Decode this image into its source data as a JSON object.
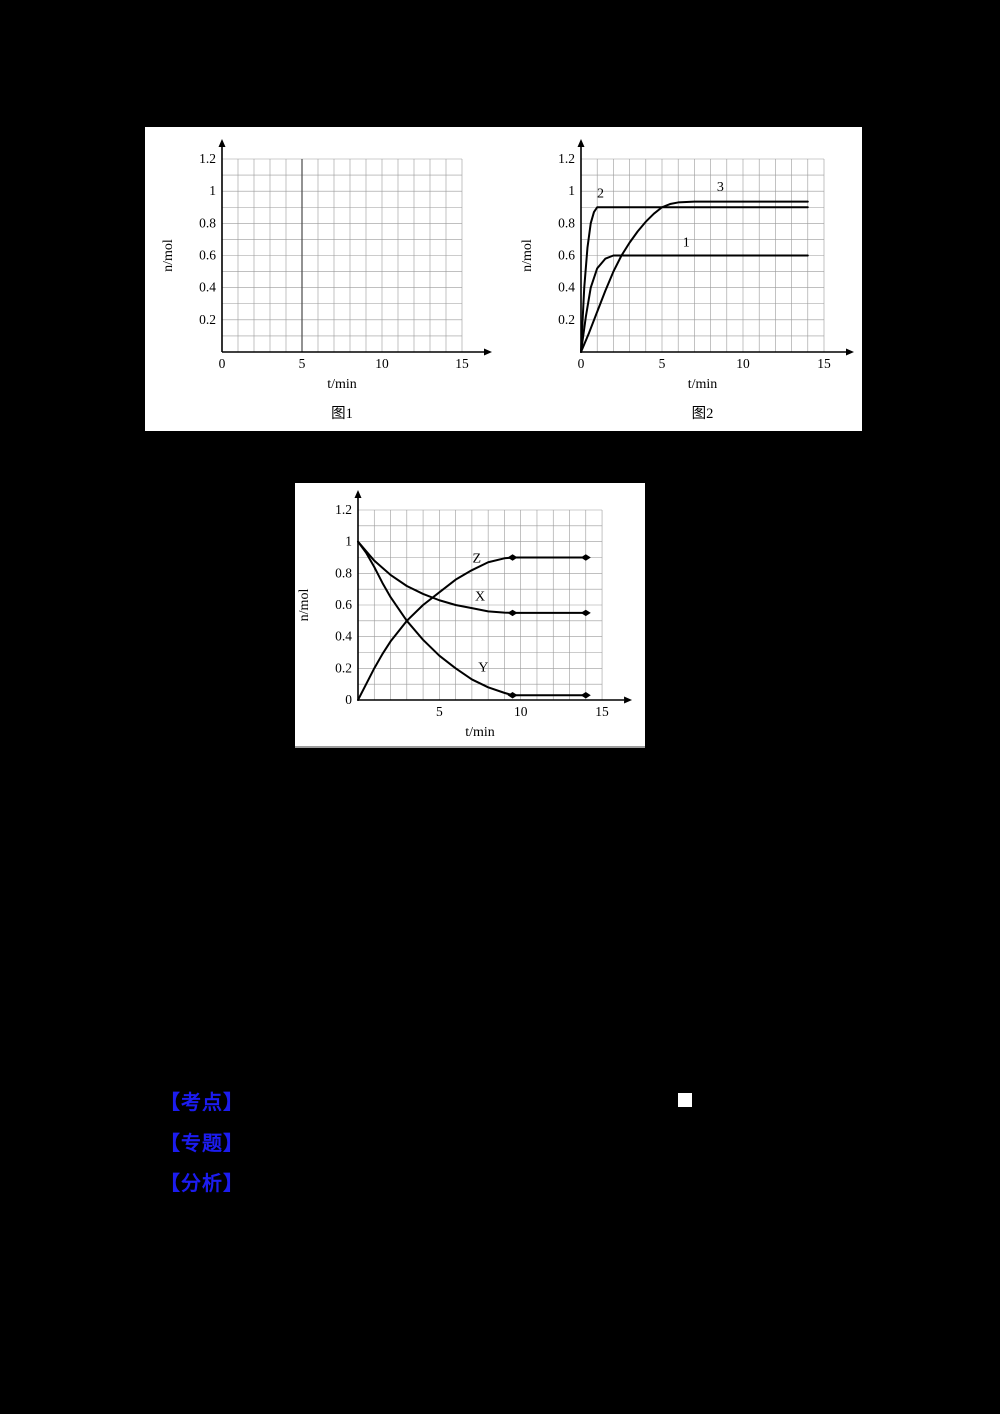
{
  "page": {
    "background": "#000000",
    "chart_line_color": "#000000",
    "grid_color": "#9a9a9a",
    "annotation_color": "#1c1cf0"
  },
  "annotations": {
    "items": [
      {
        "label": "【考点】"
      },
      {
        "label": "【专题】"
      },
      {
        "label": "【分析】"
      }
    ]
  },
  "chart_data": [
    {
      "type": "line",
      "caption": "图1",
      "xlabel": "t/min",
      "ylabel": "n/mol",
      "xlim": [
        0,
        15
      ],
      "ylim": [
        0,
        1.2
      ],
      "xticks": [
        0,
        5,
        10,
        15
      ],
      "yticks": [
        0.2,
        0.4,
        0.6,
        0.8,
        1,
        1.2
      ],
      "grid": {
        "on": true,
        "x_step": 1,
        "y_step": 0.1,
        "emphasis_x": [
          5
        ]
      },
      "series": []
    },
    {
      "type": "line",
      "caption": "图2",
      "xlabel": "t/min",
      "ylabel": "n/mol",
      "xlim": [
        0,
        15
      ],
      "ylim": [
        0,
        1.2
      ],
      "xticks": [
        0,
        5,
        10,
        15
      ],
      "yticks": [
        0.2,
        0.4,
        0.6,
        0.8,
        1,
        1.2
      ],
      "grid": {
        "on": true,
        "x_step": 1,
        "y_step": 0.1,
        "emphasis_x": []
      },
      "series": [
        {
          "label": "2",
          "label_pos": [
            1.2,
            0.96
          ],
          "plateau": 0.9,
          "points": [
            [
              0,
              0
            ],
            [
              0.2,
              0.4
            ],
            [
              0.4,
              0.65
            ],
            [
              0.6,
              0.8
            ],
            [
              0.8,
              0.87
            ],
            [
              1,
              0.9
            ],
            [
              1.5,
              0.9
            ],
            [
              14,
              0.9
            ]
          ]
        },
        {
          "label": "3",
          "label_pos": [
            8.6,
            1.0
          ],
          "plateau": 0.935,
          "points": [
            [
              0,
              0
            ],
            [
              0.5,
              0.12
            ],
            [
              1,
              0.25
            ],
            [
              1.5,
              0.38
            ],
            [
              2,
              0.5
            ],
            [
              2.5,
              0.6
            ],
            [
              3,
              0.68
            ],
            [
              3.5,
              0.75
            ],
            [
              4,
              0.81
            ],
            [
              4.5,
              0.86
            ],
            [
              5,
              0.9
            ],
            [
              5.5,
              0.92
            ],
            [
              6,
              0.93
            ],
            [
              7,
              0.935
            ],
            [
              14,
              0.935
            ]
          ]
        },
        {
          "label": "1",
          "label_pos": [
            6.5,
            0.655
          ],
          "plateau": 0.6,
          "points": [
            [
              0,
              0
            ],
            [
              0.3,
              0.22
            ],
            [
              0.6,
              0.4
            ],
            [
              1,
              0.52
            ],
            [
              1.5,
              0.58
            ],
            [
              2,
              0.6
            ],
            [
              2.5,
              0.6
            ],
            [
              14,
              0.6
            ]
          ]
        }
      ]
    },
    {
      "type": "line",
      "caption": "",
      "xlabel": "t/min",
      "ylabel": "n/mol",
      "xlim": [
        0,
        15
      ],
      "ylim": [
        0,
        1.2
      ],
      "xticks": [
        5,
        10,
        15
      ],
      "yticks": [
        0,
        0.2,
        0.4,
        0.6,
        0.8,
        1,
        1.2
      ],
      "grid": {
        "on": true,
        "x_step": 1,
        "y_step": 0.1,
        "emphasis_x": []
      },
      "series": [
        {
          "label": "X",
          "label_pos": [
            7.5,
            0.63
          ],
          "start": 1,
          "plateau": 0.55,
          "points": [
            [
              0,
              1
            ],
            [
              1,
              0.88
            ],
            [
              2,
              0.79
            ],
            [
              3,
              0.72
            ],
            [
              4,
              0.67
            ],
            [
              5,
              0.63
            ],
            [
              6,
              0.6
            ],
            [
              7,
              0.58
            ],
            [
              8,
              0.56
            ],
            [
              9,
              0.552
            ],
            [
              9.5,
              0.55
            ],
            [
              14,
              0.55
            ]
          ],
          "markers": [
            [
              9.5,
              0.55
            ],
            [
              14,
              0.55
            ]
          ]
        },
        {
          "label": "Y",
          "label_pos": [
            7.7,
            0.18
          ],
          "start": 1,
          "plateau": 0.03,
          "points": [
            [
              0,
              1
            ],
            [
              0.5,
              0.93
            ],
            [
              1,
              0.84
            ],
            [
              1.5,
              0.74
            ],
            [
              2,
              0.65
            ],
            [
              3,
              0.5
            ],
            [
              4,
              0.38
            ],
            [
              5,
              0.28
            ],
            [
              6,
              0.2
            ],
            [
              7,
              0.13
            ],
            [
              8,
              0.08
            ],
            [
              9,
              0.045
            ],
            [
              9.5,
              0.03
            ],
            [
              14,
              0.03
            ]
          ],
          "markers": [
            [
              9.5,
              0.03
            ],
            [
              14,
              0.03
            ]
          ]
        },
        {
          "label": "Z",
          "label_pos": [
            7.3,
            0.87
          ],
          "start": 0,
          "plateau": 0.9,
          "points": [
            [
              0,
              0
            ],
            [
              0.5,
              0.1
            ],
            [
              1,
              0.2
            ],
            [
              1.5,
              0.29
            ],
            [
              2,
              0.37
            ],
            [
              3,
              0.5
            ],
            [
              4,
              0.6
            ],
            [
              5,
              0.68
            ],
            [
              6,
              0.76
            ],
            [
              7,
              0.82
            ],
            [
              8,
              0.87
            ],
            [
              9,
              0.895
            ],
            [
              9.5,
              0.9
            ],
            [
              14,
              0.9
            ]
          ],
          "markers": [
            [
              9.5,
              0.9
            ],
            [
              14,
              0.9
            ]
          ]
        }
      ]
    }
  ]
}
